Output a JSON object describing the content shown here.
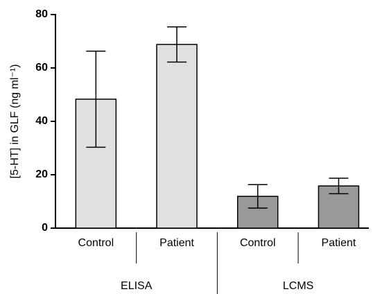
{
  "chart_data": {
    "type": "bar",
    "y_label": "[5-HT] in GLF (ng ml⁻¹)",
    "ylim": [
      0,
      80
    ],
    "yticks": [
      0,
      20,
      40,
      60,
      80
    ],
    "groups": [
      {
        "name": "ELISA",
        "color": "#e0e0e0",
        "categories": [
          "Control",
          "Patient"
        ],
        "values": [
          48.3,
          68.8
        ],
        "errors": [
          18,
          6.6
        ]
      },
      {
        "name": "LCMS",
        "color": "#999999",
        "categories": [
          "Control",
          "Patient"
        ],
        "values": [
          11.9,
          15.8
        ],
        "errors": [
          4.4,
          2.9
        ]
      }
    ]
  }
}
